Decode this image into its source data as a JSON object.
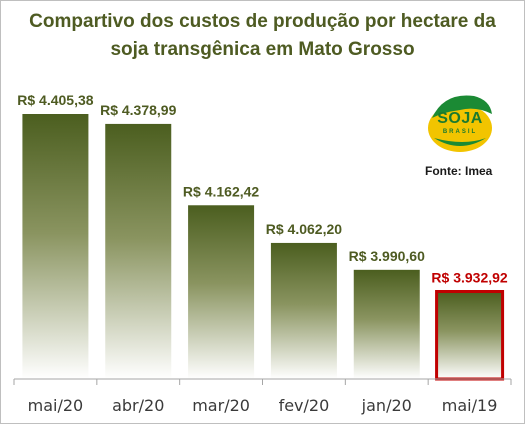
{
  "chart_data": {
    "type": "bar",
    "title_lines": [
      "Compartivo  dos custos de produção por hectare da",
      "soja transgênica  em Mato Grosso"
    ],
    "categories": [
      "mai/20",
      "abr/20",
      "mar/20",
      "fev/20",
      "jan/20",
      "mai/19"
    ],
    "values": [
      4405.38,
      4378.99,
      4162.42,
      4062.2,
      3990.6,
      3932.92
    ],
    "value_labels": [
      "R$ 4.405,38",
      "R$ 4.378,99",
      "R$ 4.162,42",
      "R$ 4.062,20",
      "R$ 3.990,60",
      "R$ 3.932,92"
    ],
    "highlight_index": 5,
    "ylim": [
      3700,
      4500
    ],
    "grid": false,
    "legend": "none",
    "colors": {
      "bar_top": "#4b5e1f",
      "bar_bottom": "#ffffff",
      "label": "#4e5b22",
      "highlight_label": "#c00000",
      "highlight_border": "#c00000"
    }
  },
  "source": "Fonte: Imea",
  "logo": {
    "icon": "soja-brasil-logo",
    "text": "SOJA",
    "subtext": "BRASIL"
  }
}
